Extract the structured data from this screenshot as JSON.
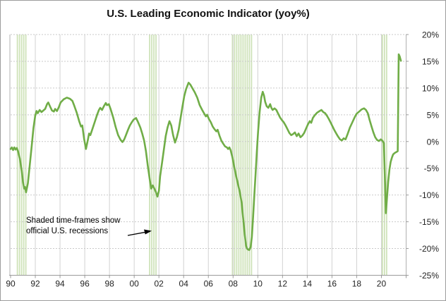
{
  "title": "U.S. Leading Economic Indicator (yoy%)",
  "annotation": {
    "line1": "Shaded time-frames show",
    "line2": "official U.S. recessions"
  },
  "colors": {
    "line": "#70ad47",
    "recession_stripe": "#cfe3ba",
    "grid_horizontal": "#c9c9c9",
    "grid_vertical": "#d2d2d2",
    "axis": "#9a9a9a",
    "border": "#b0b0b0",
    "text": "#1f1f1f"
  },
  "chart_data": {
    "type": "line",
    "title": "U.S. Leading Economic Indicator (yoy%)",
    "xlabel": "",
    "ylabel": "",
    "grid": true,
    "legend_position": "none",
    "x_axis": {
      "range": [
        1990,
        2022
      ],
      "tick_years": [
        1990,
        1992,
        1994,
        1996,
        1998,
        2000,
        2002,
        2004,
        2006,
        2008,
        2010,
        2012,
        2014,
        2016,
        2018,
        2020
      ],
      "tick_labels": [
        "90",
        "92",
        "94",
        "96",
        "98",
        "00",
        "02",
        "04",
        "06",
        "08",
        "10",
        "12",
        "14",
        "16",
        "18",
        "20"
      ]
    },
    "y_axis": {
      "range": [
        -25,
        20
      ],
      "tick_values": [
        20,
        15,
        10,
        5,
        0,
        -5,
        -10,
        -15,
        -20,
        -25
      ],
      "tick_labels": [
        "20%",
        "15%",
        "10%",
        "5%",
        "0%",
        "-5%",
        "-10%",
        "-15%",
        "-20%",
        "-25%"
      ]
    },
    "recessions": [
      {
        "start": 1990.55,
        "end": 1991.25
      },
      {
        "start": 2001.25,
        "end": 2001.92
      },
      {
        "start": 2007.95,
        "end": 2009.55
      },
      {
        "start": 2020.08,
        "end": 2020.45
      }
    ],
    "series": [
      {
        "name": "U.S. Leading Economic Indicator yoy%",
        "points": [
          [
            1990.0,
            -1.4
          ],
          [
            1990.1,
            -1.1
          ],
          [
            1990.2,
            -1.6
          ],
          [
            1990.3,
            -1.1
          ],
          [
            1990.4,
            -1.5
          ],
          [
            1990.5,
            -1.2
          ],
          [
            1990.6,
            -1.8
          ],
          [
            1990.75,
            -3.2
          ],
          [
            1990.9,
            -5.5
          ],
          [
            1991.0,
            -7.5
          ],
          [
            1991.1,
            -8.8
          ],
          [
            1991.17,
            -8.5
          ],
          [
            1991.25,
            -9.5
          ],
          [
            1991.4,
            -7.8
          ],
          [
            1991.55,
            -4.5
          ],
          [
            1991.7,
            -1.0
          ],
          [
            1991.85,
            2.5
          ],
          [
            1992.0,
            4.9
          ],
          [
            1992.1,
            5.7
          ],
          [
            1992.2,
            5.3
          ],
          [
            1992.35,
            5.9
          ],
          [
            1992.5,
            5.5
          ],
          [
            1992.65,
            5.8
          ],
          [
            1992.8,
            6.1
          ],
          [
            1992.95,
            7.0
          ],
          [
            1993.05,
            7.3
          ],
          [
            1993.2,
            6.5
          ],
          [
            1993.35,
            5.8
          ],
          [
            1993.5,
            5.6
          ],
          [
            1993.6,
            6.1
          ],
          [
            1993.75,
            5.7
          ],
          [
            1993.9,
            6.4
          ],
          [
            1994.05,
            7.3
          ],
          [
            1994.3,
            7.9
          ],
          [
            1994.55,
            8.2
          ],
          [
            1994.8,
            8.0
          ],
          [
            1995.0,
            7.6
          ],
          [
            1995.15,
            6.7
          ],
          [
            1995.35,
            5.4
          ],
          [
            1995.55,
            3.8
          ],
          [
            1995.7,
            2.8
          ],
          [
            1995.8,
            3.0
          ],
          [
            1995.95,
            0.5
          ],
          [
            1996.1,
            -1.4
          ],
          [
            1996.25,
            0.3
          ],
          [
            1996.35,
            1.5
          ],
          [
            1996.45,
            1.2
          ],
          [
            1996.6,
            2.2
          ],
          [
            1996.8,
            3.6
          ],
          [
            1997.0,
            5.0
          ],
          [
            1997.15,
            5.9
          ],
          [
            1997.25,
            6.3
          ],
          [
            1997.4,
            5.9
          ],
          [
            1997.55,
            6.6
          ],
          [
            1997.7,
            7.2
          ],
          [
            1997.8,
            6.8
          ],
          [
            1997.95,
            7.0
          ],
          [
            1998.1,
            6.0
          ],
          [
            1998.3,
            4.5
          ],
          [
            1998.5,
            2.7
          ],
          [
            1998.7,
            1.2
          ],
          [
            1998.9,
            0.3
          ],
          [
            1999.05,
            -0.1
          ],
          [
            1999.2,
            0.4
          ],
          [
            1999.35,
            1.3
          ],
          [
            1999.5,
            2.2
          ],
          [
            1999.65,
            3.0
          ],
          [
            1999.8,
            3.6
          ],
          [
            1999.95,
            4.1
          ],
          [
            2000.15,
            4.4
          ],
          [
            2000.3,
            3.7
          ],
          [
            2000.5,
            2.6
          ],
          [
            2000.65,
            1.5
          ],
          [
            2000.8,
            0.2
          ],
          [
            2000.95,
            -1.8
          ],
          [
            2001.1,
            -4.5
          ],
          [
            2001.25,
            -7.0
          ],
          [
            2001.38,
            -8.8
          ],
          [
            2001.5,
            -8.2
          ],
          [
            2001.63,
            -8.8
          ],
          [
            2001.75,
            -9.4
          ],
          [
            2001.88,
            -10.3
          ],
          [
            2002.0,
            -9.2
          ],
          [
            2002.1,
            -6.5
          ],
          [
            2002.25,
            -4.0
          ],
          [
            2002.4,
            -1.5
          ],
          [
            2002.55,
            1.0
          ],
          [
            2002.7,
            2.6
          ],
          [
            2002.85,
            3.8
          ],
          [
            2003.0,
            3.0
          ],
          [
            2003.15,
            1.2
          ],
          [
            2003.3,
            -0.2
          ],
          [
            2003.45,
            0.8
          ],
          [
            2003.6,
            2.2
          ],
          [
            2003.75,
            4.3
          ],
          [
            2003.9,
            6.5
          ],
          [
            2004.05,
            8.5
          ],
          [
            2004.2,
            9.8
          ],
          [
            2004.4,
            11.0
          ],
          [
            2004.55,
            10.6
          ],
          [
            2004.7,
            10.0
          ],
          [
            2004.9,
            9.2
          ],
          [
            2005.1,
            8.2
          ],
          [
            2005.3,
            6.8
          ],
          [
            2005.5,
            5.9
          ],
          [
            2005.65,
            5.3
          ],
          [
            2005.8,
            4.7
          ],
          [
            2005.9,
            5.0
          ],
          [
            2006.05,
            4.2
          ],
          [
            2006.2,
            3.6
          ],
          [
            2006.35,
            2.8
          ],
          [
            2006.5,
            2.3
          ],
          [
            2006.65,
            1.9
          ],
          [
            2006.75,
            2.2
          ],
          [
            2006.9,
            1.1
          ],
          [
            2007.05,
            0.2
          ],
          [
            2007.2,
            -0.4
          ],
          [
            2007.35,
            -0.9
          ],
          [
            2007.5,
            -1.1
          ],
          [
            2007.6,
            -1.4
          ],
          [
            2007.7,
            -1.1
          ],
          [
            2007.8,
            -1.6
          ],
          [
            2007.95,
            -3.0
          ],
          [
            2008.1,
            -4.8
          ],
          [
            2008.25,
            -6.5
          ],
          [
            2008.4,
            -8.0
          ],
          [
            2008.55,
            -9.5
          ],
          [
            2008.7,
            -11.5
          ],
          [
            2008.8,
            -14.0
          ],
          [
            2008.95,
            -17.5
          ],
          [
            2009.05,
            -19.5
          ],
          [
            2009.15,
            -20.1
          ],
          [
            2009.3,
            -20.3
          ],
          [
            2009.42,
            -19.7
          ],
          [
            2009.52,
            -17.8
          ],
          [
            2009.62,
            -14.0
          ],
          [
            2009.72,
            -10.0
          ],
          [
            2009.82,
            -6.0
          ],
          [
            2009.92,
            -2.0
          ],
          [
            2010.02,
            1.8
          ],
          [
            2010.15,
            5.5
          ],
          [
            2010.28,
            8.2
          ],
          [
            2010.4,
            9.3
          ],
          [
            2010.5,
            8.6
          ],
          [
            2010.6,
            7.4
          ],
          [
            2010.72,
            6.6
          ],
          [
            2010.85,
            6.3
          ],
          [
            2011.0,
            7.0
          ],
          [
            2011.1,
            6.3
          ],
          [
            2011.2,
            5.9
          ],
          [
            2011.35,
            6.2
          ],
          [
            2011.5,
            5.9
          ],
          [
            2011.65,
            5.2
          ],
          [
            2011.8,
            4.5
          ],
          [
            2011.95,
            4.0
          ],
          [
            2012.1,
            3.6
          ],
          [
            2012.25,
            3.0
          ],
          [
            2012.4,
            2.3
          ],
          [
            2012.55,
            1.6
          ],
          [
            2012.7,
            1.2
          ],
          [
            2012.85,
            1.4
          ],
          [
            2013.0,
            1.7
          ],
          [
            2013.15,
            1.0
          ],
          [
            2013.3,
            1.5
          ],
          [
            2013.45,
            0.8
          ],
          [
            2013.6,
            1.1
          ],
          [
            2013.75,
            1.6
          ],
          [
            2013.9,
            2.4
          ],
          [
            2014.05,
            3.2
          ],
          [
            2014.2,
            3.8
          ],
          [
            2014.32,
            3.5
          ],
          [
            2014.45,
            4.4
          ],
          [
            2014.6,
            4.9
          ],
          [
            2014.8,
            5.4
          ],
          [
            2015.0,
            5.7
          ],
          [
            2015.15,
            5.9
          ],
          [
            2015.3,
            5.5
          ],
          [
            2015.45,
            5.3
          ],
          [
            2015.6,
            4.8
          ],
          [
            2015.75,
            4.2
          ],
          [
            2015.9,
            3.5
          ],
          [
            2016.05,
            2.8
          ],
          [
            2016.2,
            2.1
          ],
          [
            2016.35,
            1.5
          ],
          [
            2016.5,
            0.9
          ],
          [
            2016.65,
            0.4
          ],
          [
            2016.8,
            0.2
          ],
          [
            2016.95,
            0.6
          ],
          [
            2017.1,
            0.4
          ],
          [
            2017.25,
            1.3
          ],
          [
            2017.45,
            2.6
          ],
          [
            2017.65,
            3.6
          ],
          [
            2017.85,
            4.6
          ],
          [
            2018.0,
            5.2
          ],
          [
            2018.2,
            5.6
          ],
          [
            2018.4,
            6.0
          ],
          [
            2018.6,
            6.2
          ],
          [
            2018.75,
            5.9
          ],
          [
            2018.9,
            5.3
          ],
          [
            2019.05,
            4.0
          ],
          [
            2019.2,
            2.8
          ],
          [
            2019.35,
            1.7
          ],
          [
            2019.5,
            0.8
          ],
          [
            2019.65,
            0.3
          ],
          [
            2019.8,
            0.1
          ],
          [
            2019.95,
            0.4
          ],
          [
            2020.1,
            0.1
          ],
          [
            2020.2,
            -0.3
          ],
          [
            2020.3,
            -8.0
          ],
          [
            2020.36,
            -13.4
          ],
          [
            2020.45,
            -10.5
          ],
          [
            2020.55,
            -7.5
          ],
          [
            2020.65,
            -5.2
          ],
          [
            2020.75,
            -3.8
          ],
          [
            2020.85,
            -3.0
          ],
          [
            2020.95,
            -2.4
          ],
          [
            2021.1,
            -2.1
          ],
          [
            2021.25,
            -1.9
          ],
          [
            2021.32,
            -1.8
          ],
          [
            2021.4,
            16.3
          ],
          [
            2021.48,
            15.9
          ],
          [
            2021.58,
            15.1
          ]
        ]
      }
    ]
  }
}
